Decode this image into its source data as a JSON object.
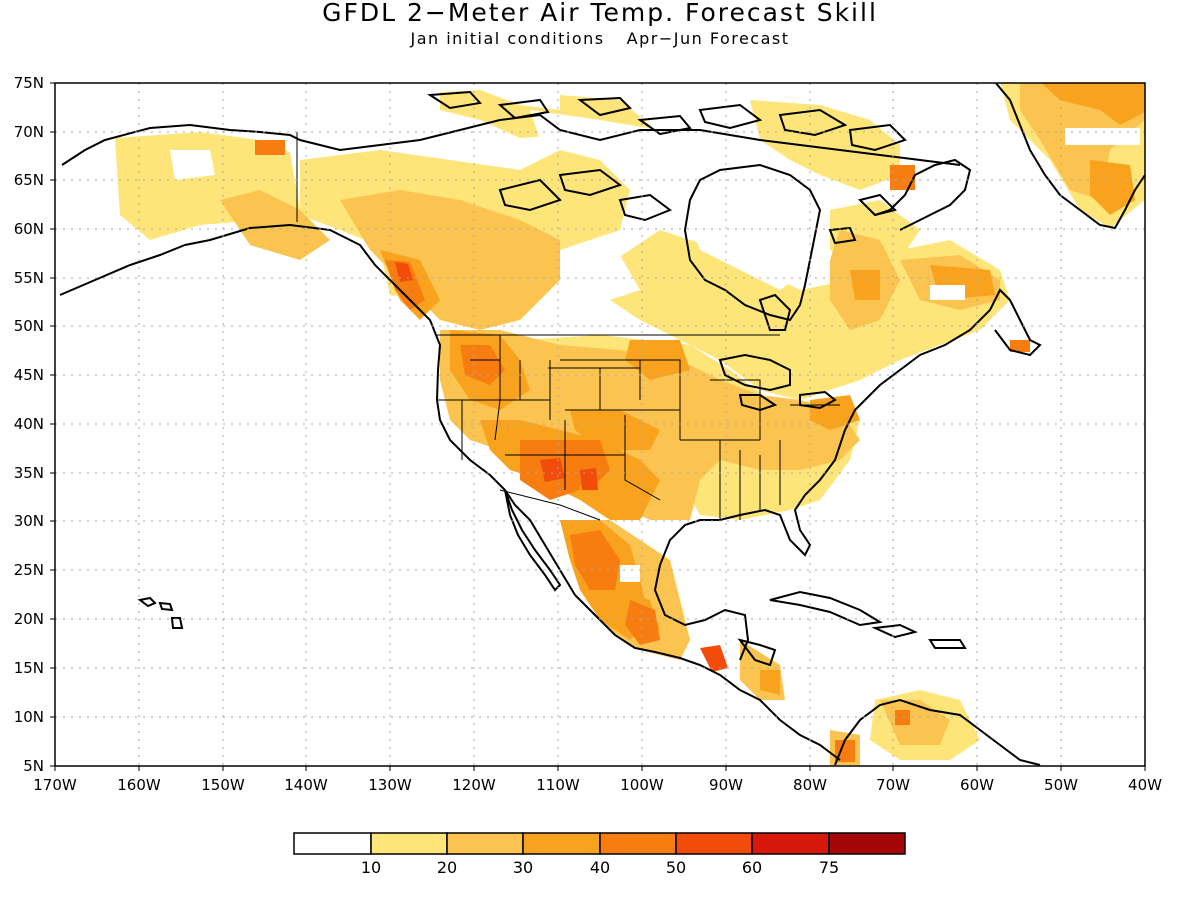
{
  "title": "GFDL 2−Meter Air Temp. Forecast Skill",
  "subtitle_left": "Jan initial conditions",
  "subtitle_right": "Apr−Jun Forecast",
  "lat_labels": [
    "75N",
    "70N",
    "65N",
    "60N",
    "55N",
    "50N",
    "45N",
    "40N",
    "35N",
    "30N",
    "25N",
    "20N",
    "15N",
    "10N",
    "5N"
  ],
  "lon_labels": [
    "170W",
    "160W",
    "150W",
    "140W",
    "130W",
    "120W",
    "110W",
    "100W",
    "90W",
    "80W",
    "70W",
    "60W",
    "50W",
    "40W"
  ],
  "colorbar": {
    "labels": [
      "10",
      "20",
      "30",
      "40",
      "50",
      "60",
      "75"
    ],
    "colors": [
      "#ffffff",
      "#fde57a",
      "#fbc450",
      "#f9a21e",
      "#f77d10",
      "#f24b0a",
      "#d7190c",
      "#a50606"
    ]
  }
}
